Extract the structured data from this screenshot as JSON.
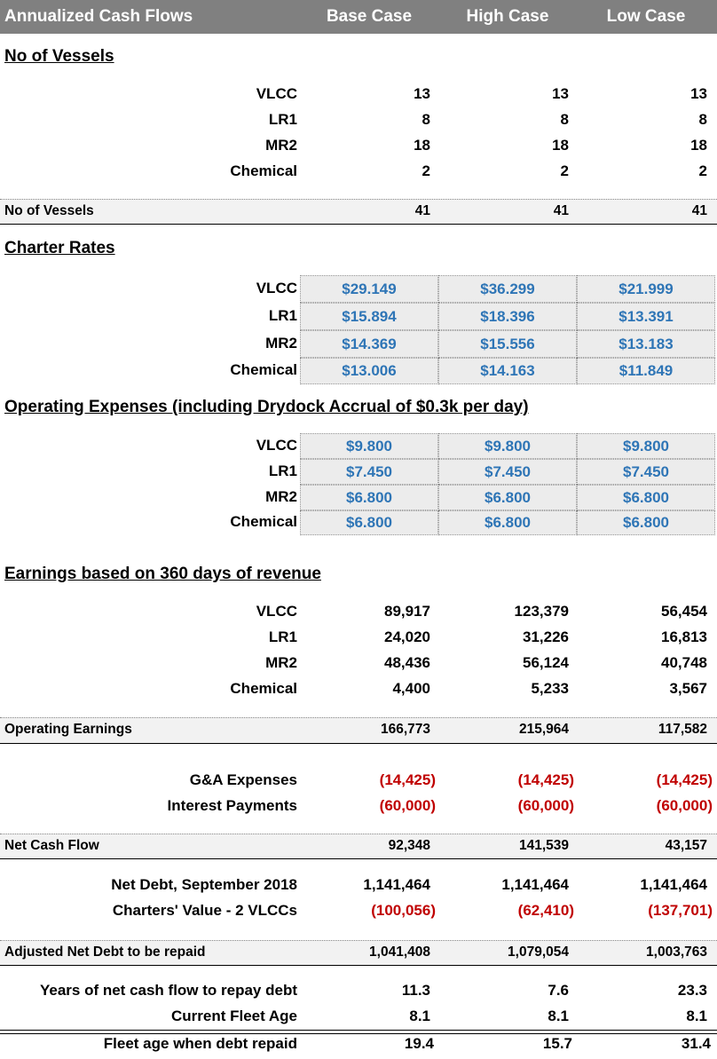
{
  "header": {
    "title": "Annualized Cash Flows",
    "columns": [
      "Base Case",
      "High Case",
      "Low Case"
    ]
  },
  "sections": [
    {
      "heading": "No of Vessels",
      "rows": [
        {
          "label": "VLCC",
          "values": [
            "13",
            "13",
            "13"
          ]
        },
        {
          "label": "LR1",
          "values": [
            "8",
            "8",
            "8"
          ]
        },
        {
          "label": "MR2",
          "values": [
            "18",
            "18",
            "18"
          ]
        },
        {
          "label": "Chemical",
          "values": [
            "2",
            "2",
            "2"
          ]
        }
      ],
      "total": {
        "label": "No of Vessels",
        "values": [
          "41",
          "41",
          "41"
        ]
      }
    },
    {
      "heading": "Charter Rates",
      "rows": [
        {
          "label": "VLCC",
          "values": [
            "$29.149",
            "$36.299",
            "$21.999"
          ]
        },
        {
          "label": "LR1",
          "values": [
            "$15.894",
            "$18.396",
            "$13.391"
          ]
        },
        {
          "label": "MR2",
          "values": [
            "$14.369",
            "$15.556",
            "$13.183"
          ]
        },
        {
          "label": "Chemical",
          "values": [
            "$13.006",
            "$14.163",
            "$11.849"
          ]
        }
      ]
    },
    {
      "heading": "Operating Expenses (including Drydock Accrual of $0.3k per day)",
      "rows": [
        {
          "label": "VLCC",
          "values": [
            "$9.800",
            "$9.800",
            "$9.800"
          ]
        },
        {
          "label": "LR1",
          "values": [
            "$7.450",
            "$7.450",
            "$7.450"
          ]
        },
        {
          "label": "MR2",
          "values": [
            "$6.800",
            "$6.800",
            "$6.800"
          ]
        },
        {
          "label": "Chemical",
          "values": [
            "$6.800",
            "$6.800",
            "$6.800"
          ]
        }
      ]
    },
    {
      "heading": "Earnings based on 360 days of revenue",
      "rows": [
        {
          "label": "VLCC",
          "values": [
            "89,917",
            "123,379",
            "56,454"
          ]
        },
        {
          "label": "LR1",
          "values": [
            "24,020",
            "31,226",
            "16,813"
          ]
        },
        {
          "label": "MR2",
          "values": [
            "48,436",
            "56,124",
            "40,748"
          ]
        },
        {
          "label": "Chemical",
          "values": [
            "4,400",
            "5,233",
            "3,567"
          ]
        }
      ],
      "total": {
        "label": "Operating Earnings",
        "values": [
          "166,773",
          "215,964",
          "117,582"
        ]
      }
    },
    {
      "rows": [
        {
          "label": "G&A Expenses",
          "values": [
            "(14,425)",
            "(14,425)",
            "(14,425)"
          ]
        },
        {
          "label": "Interest Payments",
          "values": [
            "(60,000)",
            "(60,000)",
            "(60,000)"
          ]
        }
      ],
      "total": {
        "label": "Net Cash Flow",
        "values": [
          "92,348",
          "141,539",
          "43,157"
        ]
      }
    },
    {
      "rows": [
        {
          "label": "Net Debt, September 2018",
          "values": [
            "1,141,464",
            "1,141,464",
            "1,141,464"
          ]
        },
        {
          "label": "Charters' Value - 2 VLCCs",
          "values": [
            "(100,056)",
            "(62,410)",
            "(137,701)"
          ]
        }
      ],
      "total": {
        "label": "Adjusted Net Debt to be repaid",
        "values": [
          "1,041,408",
          "1,079,054",
          "1,003,763"
        ]
      }
    },
    {
      "rows": [
        {
          "label": "Years of net cash flow to repay debt",
          "values": [
            "11.3",
            "7.6",
            "23.3"
          ]
        },
        {
          "label": "Current Fleet Age",
          "values": [
            "8.1",
            "8.1",
            "8.1"
          ]
        }
      ],
      "final": {
        "label": "Fleet age when debt repaid",
        "values": [
          "19.4",
          "15.7",
          "31.4"
        ]
      }
    }
  ]
}
